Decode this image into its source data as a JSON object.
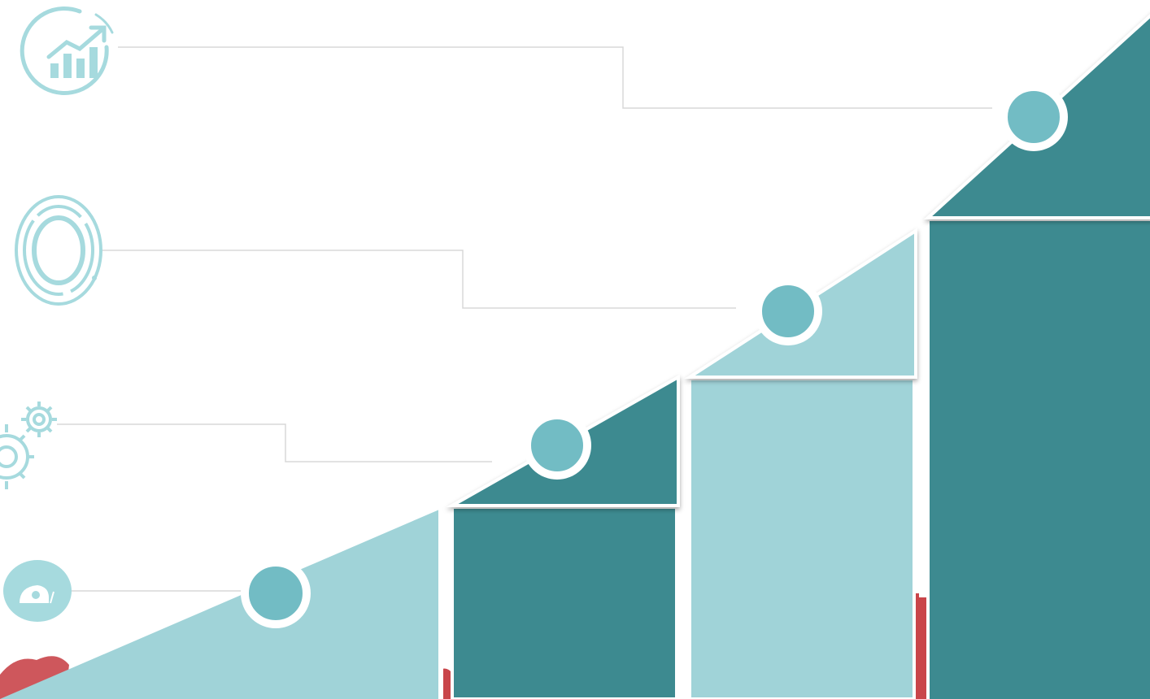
{
  "colors": {
    "dark_teal": "#3d8a90",
    "light_teal": "#a0d3d8",
    "marker": "#72bcc4",
    "icon": "#a6dade",
    "connector": "#d8d8d8",
    "red_silhouette": "#c9454a"
  },
  "steps": [
    {
      "level": 1,
      "icon": "snail-icon",
      "fill": "light"
    },
    {
      "level": 2,
      "icon": "gears-icon",
      "fill": "dark"
    },
    {
      "level": 3,
      "icon": "target-icon",
      "fill": "light"
    },
    {
      "level": 4,
      "icon": "growth-chart-icon",
      "fill": "dark"
    }
  ]
}
